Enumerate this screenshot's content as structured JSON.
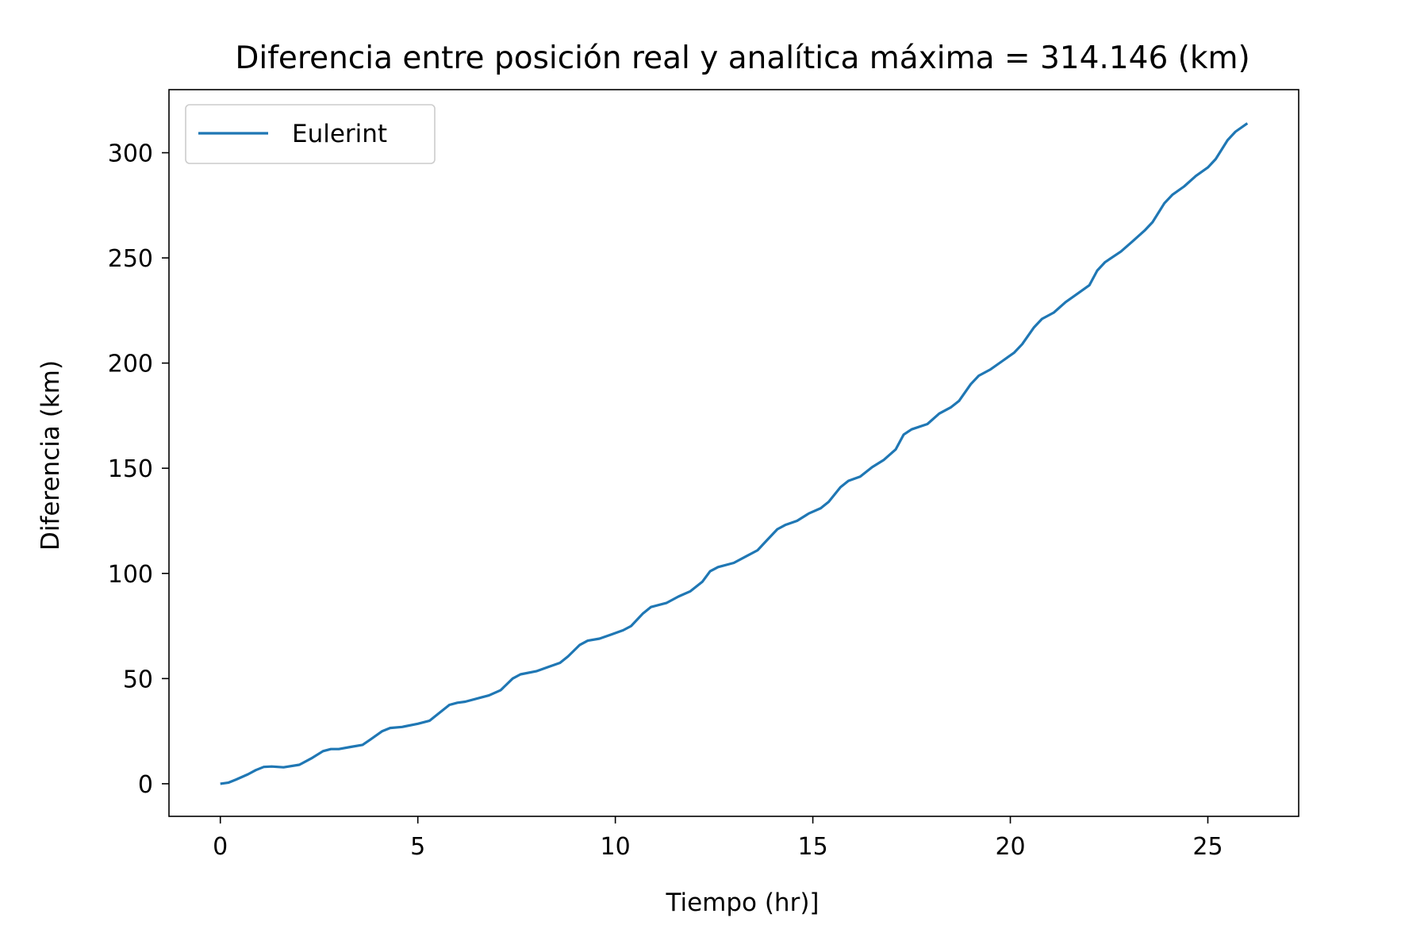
{
  "chart_data": {
    "type": "line",
    "title": "Diferencia entre posición real y analítica máxima = 314.146 (km)",
    "xlabel": "Tiempo (hr)]",
    "ylabel": "Diferencia (km)",
    "xlim": [
      -1.3,
      27.3
    ],
    "ylim": [
      -15.5,
      330
    ],
    "xticks": [
      0,
      5,
      10,
      15,
      20,
      25
    ],
    "yticks": [
      0,
      50,
      100,
      150,
      200,
      250,
      300
    ],
    "grid": false,
    "legend_position": "top-left",
    "series": [
      {
        "name": "Eulerint",
        "color": "#1f77b4",
        "x": [
          0,
          0.2,
          0.4,
          0.7,
          0.9,
          1.1,
          1.3,
          1.6,
          2.0,
          2.3,
          2.6,
          2.8,
          3.0,
          3.3,
          3.6,
          3.8,
          4.1,
          4.3,
          4.6,
          5.0,
          5.3,
          5.5,
          5.8,
          6.0,
          6.2,
          6.6,
          6.8,
          7.1,
          7.4,
          7.6,
          8.0,
          8.3,
          8.6,
          8.8,
          9.1,
          9.3,
          9.6,
          9.9,
          10.2,
          10.4,
          10.7,
          10.9,
          11.3,
          11.6,
          11.9,
          12.2,
          12.4,
          12.6,
          13.0,
          13.3,
          13.6,
          13.8,
          14.1,
          14.3,
          14.6,
          14.9,
          15.2,
          15.4,
          15.7,
          15.9,
          16.2,
          16.5,
          16.8,
          17.1,
          17.3,
          17.5,
          17.9,
          18.2,
          18.5,
          18.7,
          19.0,
          19.2,
          19.5,
          19.8,
          20.1,
          20.3,
          20.6,
          20.8,
          21.1,
          21.4,
          21.7,
          22.0,
          22.2,
          22.4,
          22.8,
          23.1,
          23.4,
          23.6,
          23.9,
          24.1,
          24.4,
          24.7,
          25.0,
          25.2,
          25.5,
          25.7,
          26.0
        ],
        "y": [
          0,
          0.5,
          2,
          4.5,
          6.5,
          8,
          8.2,
          7.8,
          9,
          12,
          15.5,
          16.5,
          16.5,
          17.5,
          18.5,
          21,
          25,
          26.5,
          27,
          28.5,
          30,
          33,
          37.5,
          38.5,
          39,
          41,
          42,
          44.5,
          50,
          52,
          53.5,
          55.5,
          57.5,
          60.5,
          66,
          68,
          69,
          71,
          73,
          75,
          81,
          84,
          86,
          89,
          91.5,
          96,
          101,
          103,
          105,
          108,
          111,
          115,
          121,
          123,
          125,
          128.5,
          131,
          134,
          141,
          144,
          146,
          150.5,
          154,
          159,
          166,
          168.5,
          171,
          176,
          179,
          182,
          190,
          194,
          197,
          201,
          205,
          209,
          217,
          221,
          224,
          229,
          233,
          237,
          244,
          248,
          253,
          258,
          263,
          267,
          276,
          280,
          284,
          289,
          293,
          297,
          306,
          310,
          314
        ]
      }
    ]
  }
}
